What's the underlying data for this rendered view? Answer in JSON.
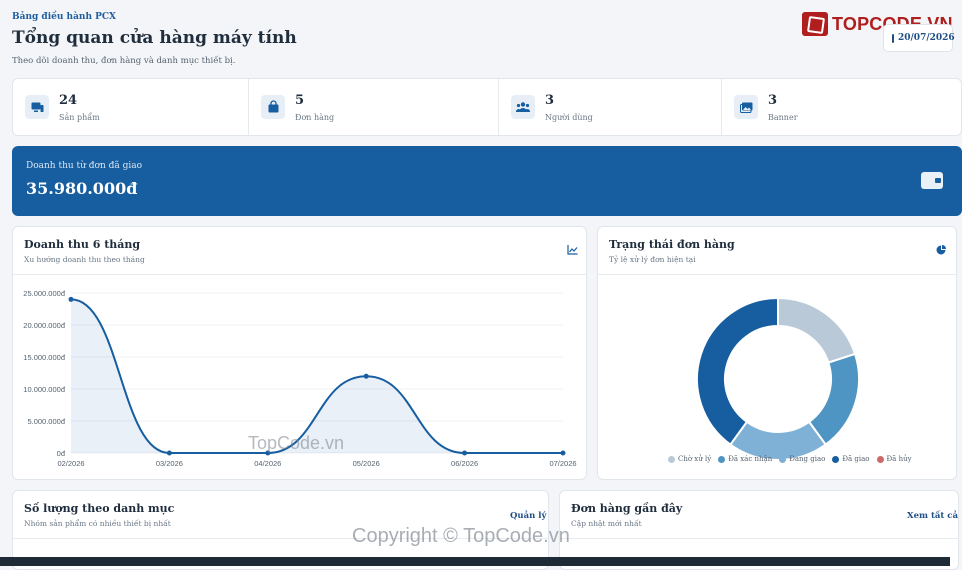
{
  "header": {
    "eyebrow": "Bảng điều hành PCX",
    "title": "Tổng quan cửa hàng máy tính",
    "subtitle": "Theo dõi doanh thu, đơn hàng và danh mục thiết bị."
  },
  "brand": {
    "name": "TOPCODE.VN"
  },
  "date": "20/07/2026",
  "stats": [
    {
      "value": "24",
      "label": "Sản phẩm",
      "icon": "devices-icon"
    },
    {
      "value": "5",
      "label": "Đơn hàng",
      "icon": "shopping-bag-icon"
    },
    {
      "value": "3",
      "label": "Người dùng",
      "icon": "users-icon"
    },
    {
      "value": "3",
      "label": "Banner",
      "icon": "image-icon"
    }
  ],
  "revenue": {
    "label": "Doanh thu từ đơn đã giao",
    "value": "35.980.000đ",
    "icon": "wallet-icon"
  },
  "revenue_card": {
    "title": "Doanh thu 6 tháng",
    "subtitle": "Xu hướng doanh thu theo tháng",
    "icon": "line-chart-icon"
  },
  "status_card": {
    "title": "Trạng thái đơn hàng",
    "subtitle": "Tỷ lệ xử lý đơn hiện tại",
    "icon": "pie-chart-icon"
  },
  "category_card": {
    "title": "Số lượng theo danh mục",
    "subtitle": "Nhóm sản phẩm có nhiều thiết bị nhất",
    "link": "Quản lý"
  },
  "orders_card": {
    "title": "Đơn hàng gần đây",
    "subtitle": "Cập nhật mới nhất",
    "link": "Xem tất cả"
  },
  "watermarks": [
    "TopCode.vn",
    "Copyright © TopCode.vn"
  ],
  "colors": {
    "primary": "#175ea1",
    "brand": "#b01e1e",
    "background": "#f3f5f8"
  },
  "chart_data": [
    {
      "type": "area",
      "categories": [
        "02/2026",
        "03/2026",
        "04/2026",
        "05/2026",
        "06/2026",
        "07/2026"
      ],
      "series": [
        {
          "values": [
            24000000,
            0,
            0,
            12000000,
            0,
            0
          ]
        }
      ],
      "ylim": [
        0,
        25000000
      ],
      "yticks": [
        "0đ",
        "5.000.000đ",
        "10.000.000đ",
        "15.000.000đ",
        "20.000.000đ",
        "25.000.000đ"
      ],
      "grid": true,
      "color": "#175ea1"
    },
    {
      "type": "pie",
      "donut": true,
      "labels": [
        "Chờ xử lý",
        "Đã xác nhận",
        "Đang giao",
        "Đã giao",
        "Đã hủy"
      ],
      "values": [
        1,
        1,
        1,
        2,
        0
      ],
      "colors": [
        "#b9c9d8",
        "#4f95c4",
        "#7fb0d6",
        "#175ea1",
        "#c96b6b"
      ],
      "legend": "bottom"
    }
  ]
}
